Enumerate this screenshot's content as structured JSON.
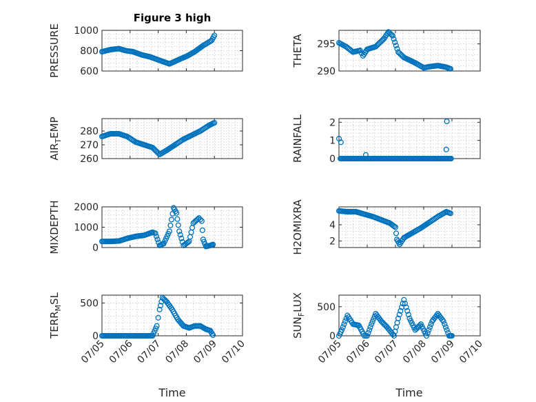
{
  "figure": {
    "title": "Figure 3 high",
    "xlabel": "Time"
  },
  "colors": {
    "marker": "#0072BD",
    "axis": "#262626",
    "grid": "#c8c8c8"
  },
  "chart_data": [
    {
      "type": "scatter",
      "title": "Figure 3 high",
      "ylabel": "PRESSURE",
      "xlabel": "",
      "xticks": [
        "07/05",
        "07/06",
        "07/07",
        "07/08",
        "07/09",
        "07/10"
      ],
      "show_xticks": false,
      "ylim": [
        600,
        1000
      ],
      "yticks": [
        600,
        800,
        1000
      ],
      "ytick_labels": [
        "600",
        "800",
        "1000"
      ],
      "grid": true,
      "series": [
        {
          "x": [
            0,
            0.3,
            0.6,
            0.85,
            1.1,
            1.4,
            1.7,
            2.0,
            2.4,
            2.8,
            3.05,
            3.3,
            3.6,
            3.9,
            4.0
          ],
          "y": [
            790,
            810,
            820,
            800,
            790,
            760,
            740,
            710,
            670,
            720,
            750,
            790,
            850,
            900,
            950
          ]
        }
      ]
    },
    {
      "type": "scatter",
      "title": "",
      "ylabel": "THETA",
      "xlabel": "",
      "xticks": [
        "07/05",
        "07/06",
        "07/07",
        "07/08",
        "07/09",
        "07/10"
      ],
      "show_xticks": false,
      "ylim": [
        290,
        297.5
      ],
      "yticks": [
        290,
        295
      ],
      "ytick_labels": [
        "290",
        "295"
      ],
      "grid": true,
      "series": [
        {
          "x": [
            0,
            0.25,
            0.5,
            0.75,
            0.85,
            1.0,
            1.3,
            1.6,
            1.75,
            1.9,
            2.1,
            2.3,
            2.5,
            2.7,
            3.0,
            3.2,
            3.5,
            3.8,
            3.95
          ],
          "y": [
            295.2,
            294.5,
            293.5,
            293.8,
            292.8,
            294.0,
            294.5,
            296.0,
            297.2,
            296.5,
            293.5,
            292.5,
            292.0,
            291.5,
            290.6,
            290.8,
            291.0,
            290.7,
            290.4
          ]
        }
      ]
    },
    {
      "type": "scatter",
      "title": "",
      "ylabel": "AIR_TEMP",
      "xlabel": "",
      "xticks": [
        "07/05",
        "07/06",
        "07/07",
        "07/08",
        "07/09",
        "07/10"
      ],
      "show_xticks": false,
      "ylim": [
        260,
        289
      ],
      "yticks": [
        260,
        270,
        280
      ],
      "ytick_labels": [
        "260",
        "270",
        "280"
      ],
      "grid": true,
      "series": [
        {
          "x": [
            0,
            0.3,
            0.6,
            0.9,
            1.2,
            1.5,
            1.8,
            2.05,
            2.3,
            2.6,
            2.9,
            3.2,
            3.5,
            3.8,
            4.0
          ],
          "y": [
            276,
            278,
            278,
            276,
            272,
            270,
            268,
            263,
            266,
            270,
            274,
            277,
            280,
            284,
            286
          ]
        }
      ]
    },
    {
      "type": "scatter",
      "title": "",
      "ylabel": "RAINFALL",
      "xlabel": "",
      "xticks": [
        "07/05",
        "07/06",
        "07/07",
        "07/08",
        "07/09",
        "07/10"
      ],
      "show_xticks": false,
      "ylim": [
        0,
        2.2
      ],
      "yticks": [
        0,
        1,
        2
      ],
      "ytick_labels": [
        "0",
        "1",
        "2"
      ],
      "grid": true,
      "series": [
        {
          "x": [
            0,
            0.07,
            0.5,
            1.0,
            1.5,
            2.0,
            2.5,
            3.0,
            3.5,
            3.85,
            4.0,
            0.95,
            3.8,
            3.82
          ],
          "y": [
            1.1,
            0.9,
            0,
            0,
            0,
            0,
            0,
            0,
            0,
            0,
            0,
            0.2,
            0.5,
            2.05
          ]
        }
      ]
    },
    {
      "type": "scatter",
      "title": "",
      "ylabel": "MIXDEPTH",
      "xlabel": "",
      "xticks": [
        "07/05",
        "07/06",
        "07/07",
        "07/08",
        "07/09",
        "07/10"
      ],
      "show_xticks": false,
      "ylim": [
        0,
        2000
      ],
      "yticks": [
        0,
        1000,
        2000
      ],
      "ytick_labels": [
        "0",
        "1000",
        "2000"
      ],
      "grid": true,
      "series": [
        {
          "x": [
            0,
            0.3,
            0.6,
            0.9,
            1.2,
            1.5,
            1.7,
            1.8,
            1.9,
            2.05,
            2.2,
            2.4,
            2.55,
            2.65,
            2.75,
            2.9,
            3.1,
            3.25,
            3.45,
            3.55,
            3.6,
            3.7,
            3.85,
            3.95
          ],
          "y": [
            300,
            300,
            320,
            450,
            550,
            600,
            700,
            750,
            700,
            100,
            200,
            800,
            1950,
            1700,
            800,
            100,
            300,
            1200,
            1450,
            1300,
            400,
            50,
            100,
            150
          ]
        }
      ]
    },
    {
      "type": "scatter",
      "title": "",
      "ylabel": "H2OMIXRA",
      "xlabel": "",
      "xticks": [
        "07/05",
        "07/06",
        "07/07",
        "07/08",
        "07/09",
        "07/10"
      ],
      "show_xticks": false,
      "ylim": [
        1.2,
        6.2
      ],
      "yticks": [
        2,
        4
      ],
      "ytick_labels": [
        "2",
        "4"
      ],
      "grid": true,
      "series": [
        {
          "x": [
            0,
            0.3,
            0.6,
            0.9,
            1.2,
            1.5,
            1.8,
            2.0,
            2.05,
            2.15,
            2.3,
            2.6,
            2.9,
            3.2,
            3.5,
            3.8,
            3.95
          ],
          "y": [
            5.7,
            5.6,
            5.6,
            5.3,
            5.0,
            4.6,
            4.2,
            3.7,
            2.2,
            1.6,
            2.4,
            3.0,
            3.6,
            4.3,
            5.0,
            5.6,
            5.4
          ]
        }
      ]
    },
    {
      "type": "scatter",
      "title": "",
      "ylabel": "TERR_MSL",
      "xlabel": "Time",
      "xticks": [
        "07/05",
        "07/06",
        "07/07",
        "07/08",
        "07/09",
        "07/10"
      ],
      "show_xticks": true,
      "ylim": [
        0,
        620
      ],
      "yticks": [
        0,
        500
      ],
      "ytick_labels": [
        "0",
        "500"
      ],
      "grid": true,
      "series": [
        {
          "x": [
            0,
            0.5,
            1.0,
            1.5,
            1.8,
            1.95,
            2.05,
            2.15,
            2.3,
            2.5,
            2.7,
            2.9,
            3.1,
            3.3,
            3.5,
            3.7,
            3.85,
            3.95
          ],
          "y": [
            0,
            0,
            0,
            0,
            0,
            150,
            400,
            580,
            520,
            400,
            250,
            150,
            120,
            150,
            150,
            100,
            80,
            10
          ]
        }
      ]
    },
    {
      "type": "scatter",
      "title": "",
      "ylabel": "SUN_FLUX",
      "xlabel": "Time",
      "xticks": [
        "07/05",
        "07/06",
        "07/07",
        "07/08",
        "07/09",
        "07/10"
      ],
      "show_xticks": true,
      "ylim": [
        0,
        700
      ],
      "yticks": [
        0,
        500
      ],
      "ytick_labels": [
        "0",
        "500"
      ],
      "grid": true,
      "series": [
        {
          "x": [
            0,
            0.1,
            0.3,
            0.5,
            0.7,
            0.9,
            1.0,
            1.15,
            1.3,
            1.5,
            1.7,
            1.95,
            2.1,
            2.3,
            2.5,
            2.7,
            2.9,
            3.1,
            3.3,
            3.5,
            3.7,
            3.9,
            4.0
          ],
          "y": [
            0,
            100,
            350,
            200,
            180,
            0,
            0,
            200,
            380,
            250,
            150,
            0,
            300,
            620,
            300,
            100,
            200,
            0,
            250,
            380,
            250,
            0,
            0
          ]
        }
      ]
    }
  ]
}
